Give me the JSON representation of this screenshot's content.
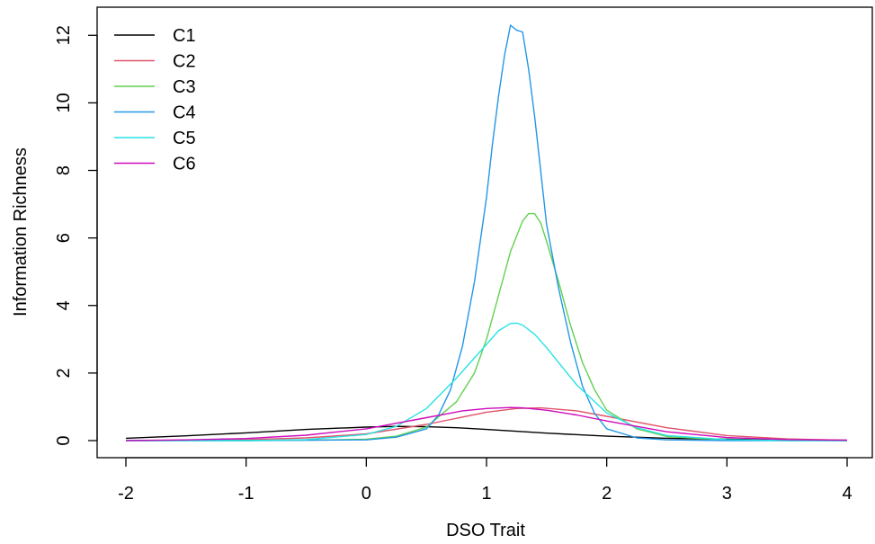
{
  "chart_data": {
    "type": "line",
    "title": "",
    "xlabel": "DSO Trait",
    "ylabel": "Information Richness",
    "xlim": [
      -2,
      4
    ],
    "ylim": [
      0,
      12.3
    ],
    "grid": false,
    "legend_position": "top-left",
    "x_ticks": [
      -2,
      -1,
      0,
      1,
      2,
      3,
      4
    ],
    "x_tick_labels": [
      "-2",
      "-1",
      "0",
      "1",
      "2",
      "3",
      "4"
    ],
    "y_ticks": [
      0,
      2,
      4,
      6,
      8,
      10,
      12
    ],
    "y_tick_labels": [
      "0",
      "2",
      "4",
      "6",
      "8",
      "10",
      "12"
    ],
    "series": [
      {
        "name": "C1",
        "color": "#000000",
        "x": [
          -2,
          -1.5,
          -1,
          -0.5,
          0,
          0.25,
          0.5,
          0.75,
          1,
          1.5,
          2,
          2.5,
          3,
          3.5,
          4
        ],
        "y": [
          0.07,
          0.14,
          0.23,
          0.33,
          0.4,
          0.42,
          0.41,
          0.38,
          0.33,
          0.22,
          0.13,
          0.07,
          0.04,
          0.02,
          0.01
        ]
      },
      {
        "name": "C2",
        "color": "#DF536B",
        "x": [
          -2,
          -1.5,
          -1,
          -0.5,
          0,
          0.5,
          1,
          1.25,
          1.45,
          1.75,
          2,
          2.5,
          3,
          3.5,
          4
        ],
        "y": [
          0.0,
          0.01,
          0.03,
          0.08,
          0.2,
          0.48,
          0.84,
          0.95,
          0.97,
          0.88,
          0.72,
          0.38,
          0.15,
          0.05,
          0.01
        ]
      },
      {
        "name": "C3",
        "color": "#61D04F",
        "x": [
          -2,
          -1,
          -0.5,
          0,
          0.25,
          0.5,
          0.75,
          0.9,
          1.0,
          1.1,
          1.2,
          1.3,
          1.35,
          1.4,
          1.45,
          1.5,
          1.6,
          1.7,
          1.8,
          1.9,
          2.0,
          2.25,
          2.5,
          3,
          3.5,
          4
        ],
        "y": [
          0.0,
          0.0,
          0.01,
          0.04,
          0.13,
          0.4,
          1.15,
          2.0,
          3.0,
          4.3,
          5.6,
          6.5,
          6.72,
          6.72,
          6.45,
          5.9,
          4.7,
          3.4,
          2.3,
          1.5,
          0.9,
          0.35,
          0.12,
          0.02,
          0.0,
          0.0
        ]
      },
      {
        "name": "C4",
        "color": "#2297E6",
        "x": [
          -2,
          -1,
          0,
          0.25,
          0.5,
          0.6,
          0.7,
          0.8,
          0.9,
          1.0,
          1.05,
          1.1,
          1.15,
          1.2,
          1.25,
          1.3,
          1.35,
          1.4,
          1.45,
          1.5,
          1.6,
          1.7,
          1.8,
          1.9,
          2.0,
          2.25,
          2.5,
          3,
          4
        ],
        "y": [
          0.0,
          0.0,
          0.02,
          0.1,
          0.35,
          0.75,
          1.5,
          2.8,
          4.7,
          7.2,
          8.8,
          10.2,
          11.4,
          12.3,
          12.15,
          12.1,
          11.0,
          9.6,
          8.0,
          6.4,
          4.5,
          2.9,
          1.6,
          0.8,
          0.35,
          0.08,
          0.02,
          0.0,
          0.0
        ]
      },
      {
        "name": "C5",
        "color": "#28E2E5",
        "x": [
          -2,
          -1,
          -0.5,
          0,
          0.25,
          0.5,
          0.75,
          1.0,
          1.1,
          1.2,
          1.25,
          1.3,
          1.4,
          1.5,
          1.75,
          2.0,
          2.25,
          2.5,
          3,
          3.5,
          4
        ],
        "y": [
          0.0,
          0.0,
          0.03,
          0.18,
          0.42,
          0.95,
          1.85,
          2.85,
          3.25,
          3.47,
          3.48,
          3.42,
          3.15,
          2.75,
          1.65,
          0.82,
          0.38,
          0.15,
          0.03,
          0.0,
          0.0
        ]
      },
      {
        "name": "C6",
        "color": "#CD0BBC",
        "x": [
          -2,
          -1.5,
          -1,
          -0.5,
          0,
          0.5,
          0.8,
          1.0,
          1.2,
          1.3,
          1.5,
          1.75,
          2.0,
          2.5,
          3,
          3.5,
          4
        ],
        "y": [
          0.0,
          0.02,
          0.06,
          0.16,
          0.35,
          0.68,
          0.88,
          0.95,
          0.98,
          0.97,
          0.9,
          0.76,
          0.58,
          0.26,
          0.09,
          0.03,
          0.01
        ]
      }
    ]
  }
}
